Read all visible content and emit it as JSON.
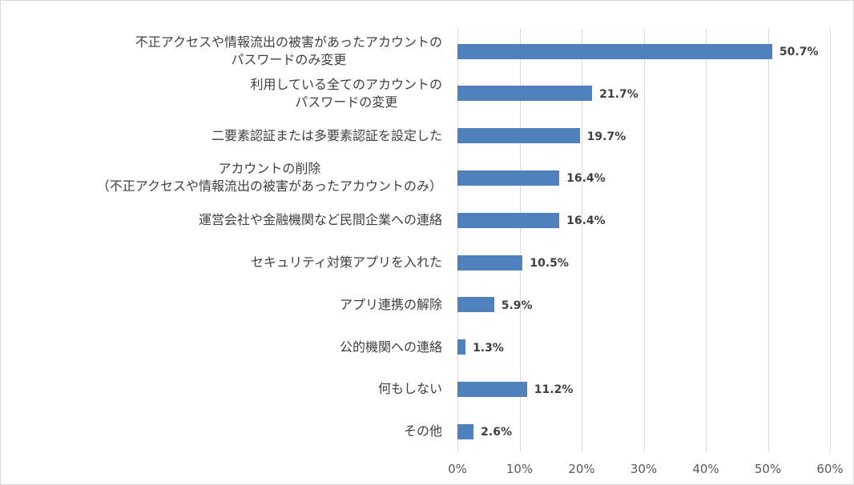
{
  "chart_data": {
    "type": "bar",
    "orientation": "horizontal",
    "categories": [
      [
        "不正アクセスや情報流出の被害があったアカウントの",
        "パスワードのみ変更"
      ],
      [
        "利用している全てのアカウントの",
        "パスワードの変更"
      ],
      [
        "二要素認証または多要素認証を設定した"
      ],
      [
        "アカウントの削除",
        "（不正アクセスや情報流出の被害があったアカウントのみ）"
      ],
      [
        "運営会社や金融機関など民間企業への連絡"
      ],
      [
        "セキュリティ対策アプリを入れた"
      ],
      [
        "アプリ連携の解除"
      ],
      [
        "公的機関への連絡"
      ],
      [
        "何もしない"
      ],
      [
        "その他"
      ]
    ],
    "values": [
      50.7,
      21.7,
      19.7,
      16.4,
      16.4,
      10.5,
      5.9,
      1.3,
      11.2,
      2.6
    ],
    "data_labels": [
      "50.7%",
      "21.7%",
      "19.7%",
      "16.4%",
      "16.4%",
      "10.5%",
      "5.9%",
      "1.3%",
      "11.2%",
      "2.6%"
    ],
    "xlim": [
      0,
      60
    ],
    "xticks": [
      "0%",
      "10%",
      "20%",
      "30%",
      "40%",
      "50%",
      "60%"
    ],
    "grid": "vertical",
    "bar_color": "#4f81bd"
  }
}
